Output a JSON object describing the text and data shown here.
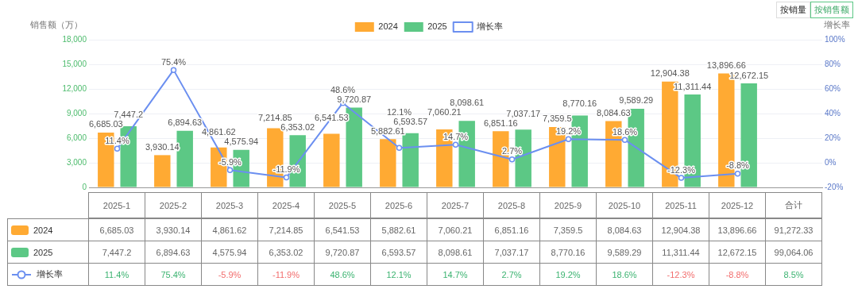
{
  "chart_data": {
    "type": "bar",
    "ylabel": "销售额（万）",
    "y2label": "增长率",
    "categories": [
      "2025-1",
      "2025-2",
      "2025-3",
      "2025-4",
      "2025-5",
      "2025-6",
      "2025-7",
      "2025-8",
      "2025-9",
      "2025-10",
      "2025-11",
      "2025-12",
      "合计"
    ],
    "series": [
      {
        "name": "2024",
        "color": "#ffaa33",
        "values": [
          6685.03,
          3930.14,
          4861.62,
          7214.85,
          6541.53,
          5882.61,
          7060.21,
          6851.16,
          7359.5,
          8084.63,
          12904.38,
          13896.66,
          null
        ],
        "value_labels": [
          "6,685.03",
          "3,930.14",
          "4,861.62",
          "7,214.85",
          "6,541.53",
          "5,882.61",
          "7,060.21",
          "6,851.16",
          "7,359.5",
          "8,084.63",
          "12,904.38",
          "13,896.66",
          "91,272.33"
        ]
      },
      {
        "name": "2025",
        "color": "#5cc885",
        "values": [
          7447.2,
          6894.63,
          4575.94,
          6353.02,
          9720.87,
          6593.57,
          8098.61,
          7037.17,
          8770.16,
          9589.29,
          11311.44,
          12672.15,
          null
        ],
        "value_labels": [
          "7,447.2",
          "6,894.63",
          "4,575.94",
          "6,353.02",
          "9,720.87",
          "6,593.57",
          "8,098.61",
          "7,037.17",
          "8,770.16",
          "9,589.29",
          "11,311.44",
          "12,672.15",
          "99,064.06"
        ]
      },
      {
        "name": "增长率",
        "type": "line",
        "axis": "y2",
        "color": "#6b8ff0",
        "values": [
          11.4,
          75.4,
          -5.9,
          -11.9,
          48.6,
          12.1,
          14.7,
          2.7,
          19.2,
          18.6,
          -12.3,
          -8.8,
          null
        ],
        "value_labels": [
          "11.4%",
          "75.4%",
          "-5.9%",
          "-11.9%",
          "48.6%",
          "12.1%",
          "14.7%",
          "2.7%",
          "19.2%",
          "18.6%",
          "-12.3%",
          "-8.8%",
          "8.5%"
        ]
      }
    ],
    "ylim": [
      0,
      18000
    ],
    "yticks": [
      {
        "value": 0,
        "label": "0"
      },
      {
        "value": 3000,
        "label": "3,000"
      },
      {
        "value": 6000,
        "label": "6,000"
      },
      {
        "value": 9000,
        "label": "9,000"
      },
      {
        "value": 12000,
        "label": "12,000"
      },
      {
        "value": 15000,
        "label": "15,000"
      },
      {
        "value": 18000,
        "label": "18,000"
      }
    ],
    "y2lim": [
      -20,
      100
    ],
    "y2ticks": [
      {
        "value": -20,
        "label": "-20%"
      },
      {
        "value": 0,
        "label": "0%"
      },
      {
        "value": 20,
        "label": "20%"
      },
      {
        "value": 40,
        "label": "40%"
      },
      {
        "value": 60,
        "label": "60%"
      },
      {
        "value": 80,
        "label": "80%"
      },
      {
        "value": 100,
        "label": "100%"
      }
    ],
    "grid": "y",
    "legend": "top",
    "marker": "circle",
    "line_style": "solid",
    "annotations": [
      "按销量",
      "按销售额"
    ]
  }
}
